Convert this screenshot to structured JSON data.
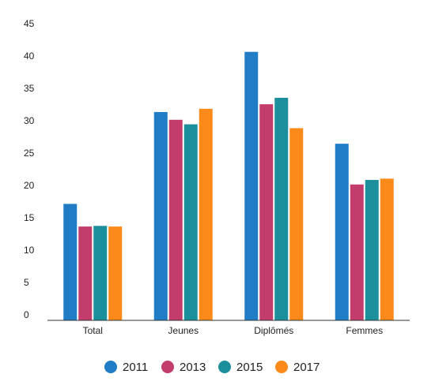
{
  "chart_data": {
    "type": "bar",
    "categories": [
      "Total",
      "Jeunes",
      "Diplômés",
      "Femmes"
    ],
    "series": [
      {
        "name": "2011",
        "values": [
          18,
          32.2,
          41.5,
          27.3
        ],
        "color": "#1f7cc5"
      },
      {
        "name": "2013",
        "values": [
          14.5,
          31,
          33.4,
          21
        ],
        "color": "#c23d6b"
      },
      {
        "name": "2015",
        "values": [
          14.6,
          30.3,
          34.4,
          21.7
        ],
        "color": "#1b8f9c"
      },
      {
        "name": "2017",
        "values": [
          14.5,
          32.7,
          29.7,
          21.9
        ],
        "color": "#fb8a1a"
      }
    ],
    "yticks": [
      "0",
      "5",
      "10",
      "15",
      "20",
      "25",
      "30",
      "35",
      "40",
      "45"
    ],
    "ylim": [
      0,
      45
    ],
    "legend_position": "bottom",
    "grid": false
  }
}
